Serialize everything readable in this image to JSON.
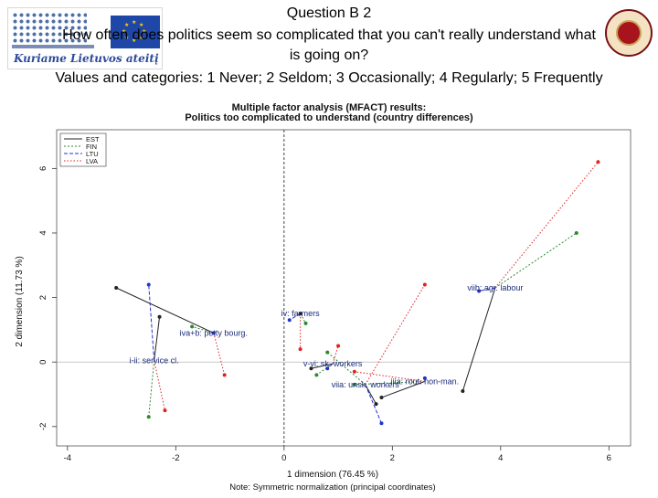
{
  "header": {
    "line1": "Question B 2",
    "line2": "How often does politics seem so complicated that you can't really understand what",
    "line3": "is going on?",
    "line4": "Values and categories: 1 Never; 2 Seldom; 3 Occasionally; 4 Regularly; 5 Frequently",
    "logo_tagline": "Kuriame Lietuvos ateitį"
  },
  "chart_data": {
    "type": "scatter",
    "title": "Multiple factor analysis (MFACT) results:",
    "subtitle": "Politics too complicated to understand (country differences)",
    "xlabel": "1 dimension (76.45 %)",
    "ylabel": "2 dimension (11.73 %)",
    "note": "Note: Symmetric normalization (principal coordinates)",
    "xlim": [
      -4.2,
      6.4
    ],
    "ylim": [
      -2.6,
      7.2
    ],
    "x_ticks": [
      -4,
      -2,
      0,
      2,
      4,
      6
    ],
    "y_ticks": [
      -2,
      0,
      2,
      4,
      6
    ],
    "grid": false,
    "legend_position": "top-left",
    "legend": [
      {
        "name": "EST",
        "color": "#222222"
      },
      {
        "name": "FIN",
        "color": "#2c8a2c"
      },
      {
        "name": "LTU",
        "color": "#2233cc"
      },
      {
        "name": "LVA",
        "color": "#dd2222"
      }
    ],
    "centroids": [
      {
        "label": "viib: agr. labour",
        "x": 3.9,
        "y": 2.3
      },
      {
        "label": "iv: farmers",
        "x": 0.3,
        "y": 1.5
      },
      {
        "label": "iva+b: petty bourg.",
        "x": -1.3,
        "y": 0.9
      },
      {
        "label": "i-ii: service cl.",
        "x": -2.4,
        "y": 0.05
      },
      {
        "label": "v-vi: sk. workers",
        "x": 0.9,
        "y": -0.05
      },
      {
        "label": "iiia: rout. non-man.",
        "x": 2.6,
        "y": -0.6
      },
      {
        "label": "viia: unsk. workers",
        "x": 1.5,
        "y": -0.7
      }
    ],
    "series": [
      {
        "name": "EST",
        "color": "#222222",
        "points": [
          {
            "category": "viib: agr. labour",
            "x": 3.3,
            "y": -0.9
          },
          {
            "category": "iv: farmers",
            "x": 0.3,
            "y": 1.5
          },
          {
            "category": "iva+b: petty bourg.",
            "x": -3.1,
            "y": 2.3
          },
          {
            "category": "i-ii: service cl.",
            "x": -2.3,
            "y": 1.4
          },
          {
            "category": "v-vi: sk. workers",
            "x": 0.5,
            "y": -0.2
          },
          {
            "category": "iiia: rout. non-man.",
            "x": 1.8,
            "y": -1.1
          },
          {
            "category": "viia: unsk. workers",
            "x": 1.7,
            "y": -1.3
          }
        ]
      },
      {
        "name": "FIN",
        "color": "#2c8a2c",
        "points": [
          {
            "category": "viib: agr. labour",
            "x": 5.4,
            "y": 4.0
          },
          {
            "category": "iv: farmers",
            "x": 0.4,
            "y": 1.2
          },
          {
            "category": "iva+b: petty bourg.",
            "x": -1.7,
            "y": 1.1
          },
          {
            "category": "i-ii: service cl.",
            "x": -2.5,
            "y": -1.7
          },
          {
            "category": "v-vi: sk. workers",
            "x": 0.6,
            "y": -0.4
          },
          {
            "category": "iiia: rout. non-man.",
            "x": 1.3,
            "y": -0.7
          },
          {
            "category": "viia: unsk. workers",
            "x": 0.8,
            "y": 0.3
          }
        ]
      },
      {
        "name": "LTU",
        "color": "#2233cc",
        "points": [
          {
            "category": "viib: agr. labour",
            "x": 3.6,
            "y": 2.2
          },
          {
            "category": "iv: farmers",
            "x": 0.1,
            "y": 1.3
          },
          {
            "category": "iva+b: petty bourg.",
            "x": -1.3,
            "y": 0.9
          },
          {
            "category": "i-ii: service cl.",
            "x": -2.5,
            "y": 2.4
          },
          {
            "category": "v-vi: sk. workers",
            "x": 0.8,
            "y": -0.2
          },
          {
            "category": "iiia: rout. non-man.",
            "x": 2.6,
            "y": -0.5
          },
          {
            "category": "viia: unsk. workers",
            "x": 1.8,
            "y": -1.9
          }
        ]
      },
      {
        "name": "LVA",
        "color": "#dd2222",
        "points": [
          {
            "category": "viib: agr. labour",
            "x": 5.8,
            "y": 6.2
          },
          {
            "category": "iv: farmers",
            "x": 0.3,
            "y": 0.4
          },
          {
            "category": "iva+b: petty bourg.",
            "x": -1.1,
            "y": -0.4
          },
          {
            "category": "i-ii: service cl.",
            "x": -2.2,
            "y": -1.5
          },
          {
            "category": "v-vi: sk. workers",
            "x": 1.0,
            "y": 0.5
          },
          {
            "category": "iiia: rout. non-man.",
            "x": 1.3,
            "y": -0.3
          },
          {
            "category": "viia: unsk. workers",
            "x": 2.6,
            "y": 2.4
          }
        ]
      }
    ]
  }
}
